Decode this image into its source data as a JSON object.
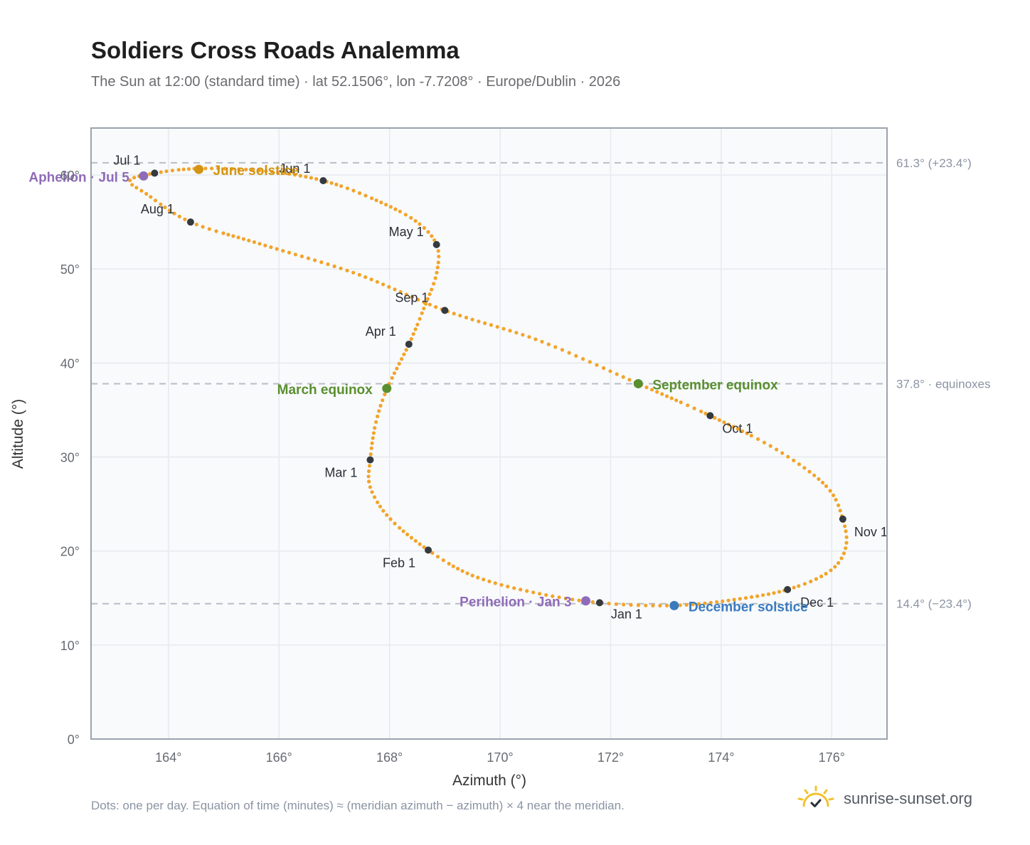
{
  "title": "Soldiers Cross Roads Analemma",
  "subtitle": "The Sun at 12:00 (standard time) · lat 52.1506°, lon -7.7208° · Europe/Dublin · 2026",
  "footnote": "Dots: one per day. Equation of time (minutes) ≈ (meridian azimuth − azimuth) × 4 near the meridian.",
  "brand": {
    "text": "sunrise-sunset.org",
    "icon": "sun-check-icon"
  },
  "colors": {
    "path": "#f2a42a",
    "month_marker": "#343a40",
    "solstice_june": "#d49411",
    "solstice_december": "#3a7abf",
    "equinox": "#5a8f2f",
    "apsis": "#8f6bb8",
    "reference_line": "#b8bec6",
    "plot_bg": "#f8fafc",
    "grid": "#e6eaee",
    "frame": "#9aa3ad"
  },
  "chart_data": {
    "type": "scatter",
    "xlabel": "Azimuth (°)",
    "ylabel": "Altitude (°)",
    "xlim": [
      162.6,
      177.0
    ],
    "ylim": [
      0,
      65
    ],
    "x_ticks": [
      164,
      166,
      168,
      170,
      172,
      174,
      176
    ],
    "x_tick_labels": [
      "164°",
      "166°",
      "168°",
      "170°",
      "172°",
      "174°",
      "176°"
    ],
    "y_ticks": [
      0,
      10,
      20,
      30,
      40,
      50,
      60
    ],
    "y_tick_labels": [
      "0°",
      "10°",
      "20°",
      "30°",
      "40°",
      "50°",
      "60°"
    ],
    "grid": true,
    "reference_lines": [
      {
        "y": 61.3,
        "label": "61.3° (+23.4°)"
      },
      {
        "y": 37.8,
        "label": "37.8° · equinoxes"
      },
      {
        "y": 14.4,
        "label": "14.4° (−23.4°)"
      }
    ],
    "path_points": [
      [
        171.8,
        14.5
      ],
      [
        170.6,
        15.6
      ],
      [
        169.5,
        17.4
      ],
      [
        168.7,
        20.1
      ],
      [
        168.0,
        23.5
      ],
      [
        167.65,
        26.8
      ],
      [
        167.65,
        29.7
      ],
      [
        167.75,
        33.6
      ],
      [
        167.95,
        37.2
      ],
      [
        168.35,
        42.0
      ],
      [
        168.62,
        45.8
      ],
      [
        168.85,
        49.5
      ],
      [
        168.85,
        52.6
      ],
      [
        168.45,
        55.2
      ],
      [
        167.65,
        57.6
      ],
      [
        166.8,
        59.4
      ],
      [
        165.8,
        60.4
      ],
      [
        164.6,
        60.7
      ],
      [
        163.75,
        60.2
      ],
      [
        163.3,
        59.4
      ],
      [
        163.6,
        58.0
      ],
      [
        164.4,
        55.0
      ],
      [
        165.7,
        52.6
      ],
      [
        167.4,
        49.5
      ],
      [
        169.0,
        45.6
      ],
      [
        170.7,
        42.4
      ],
      [
        172.5,
        37.8
      ],
      [
        173.8,
        34.4
      ],
      [
        175.0,
        30.8
      ],
      [
        175.9,
        26.9
      ],
      [
        176.2,
        23.4
      ],
      [
        176.25,
        20.3
      ],
      [
        175.95,
        17.8
      ],
      [
        175.2,
        15.9
      ],
      [
        174.2,
        14.8
      ],
      [
        173.1,
        14.2
      ],
      [
        171.8,
        14.5
      ]
    ],
    "month_markers": [
      {
        "label": "Jan 1",
        "x": 171.8,
        "y": 14.5
      },
      {
        "label": "Feb 1",
        "x": 168.7,
        "y": 20.1
      },
      {
        "label": "Mar 1",
        "x": 167.65,
        "y": 29.7
      },
      {
        "label": "Apr 1",
        "x": 168.35,
        "y": 42.0
      },
      {
        "label": "May 1",
        "x": 168.85,
        "y": 52.6
      },
      {
        "label": "Jun 1",
        "x": 166.8,
        "y": 59.4
      },
      {
        "label": "Jul 1",
        "x": 163.75,
        "y": 60.2
      },
      {
        "label": "Aug 1",
        "x": 164.4,
        "y": 55.0
      },
      {
        "label": "Sep 1",
        "x": 169.0,
        "y": 45.6
      },
      {
        "label": "Oct 1",
        "x": 173.8,
        "y": 34.4
      },
      {
        "label": "Nov 1",
        "x": 176.2,
        "y": 23.4
      },
      {
        "label": "Dec 1",
        "x": 175.2,
        "y": 15.9
      }
    ],
    "events": [
      {
        "label": "June solstice",
        "x": 164.55,
        "y": 60.6,
        "kind": "solstice_june"
      },
      {
        "label": "December solstice",
        "x": 173.15,
        "y": 14.2,
        "kind": "solstice_december"
      },
      {
        "label": "March equinox",
        "x": 167.95,
        "y": 37.3,
        "kind": "equinox"
      },
      {
        "label": "September equinox",
        "x": 172.5,
        "y": 37.8,
        "kind": "equinox"
      },
      {
        "label": "Aphelion · Jul 5",
        "x": 163.55,
        "y": 59.9,
        "kind": "apsis"
      },
      {
        "label": "Perihelion · Jan 3",
        "x": 171.55,
        "y": 14.7,
        "kind": "apsis"
      }
    ]
  }
}
